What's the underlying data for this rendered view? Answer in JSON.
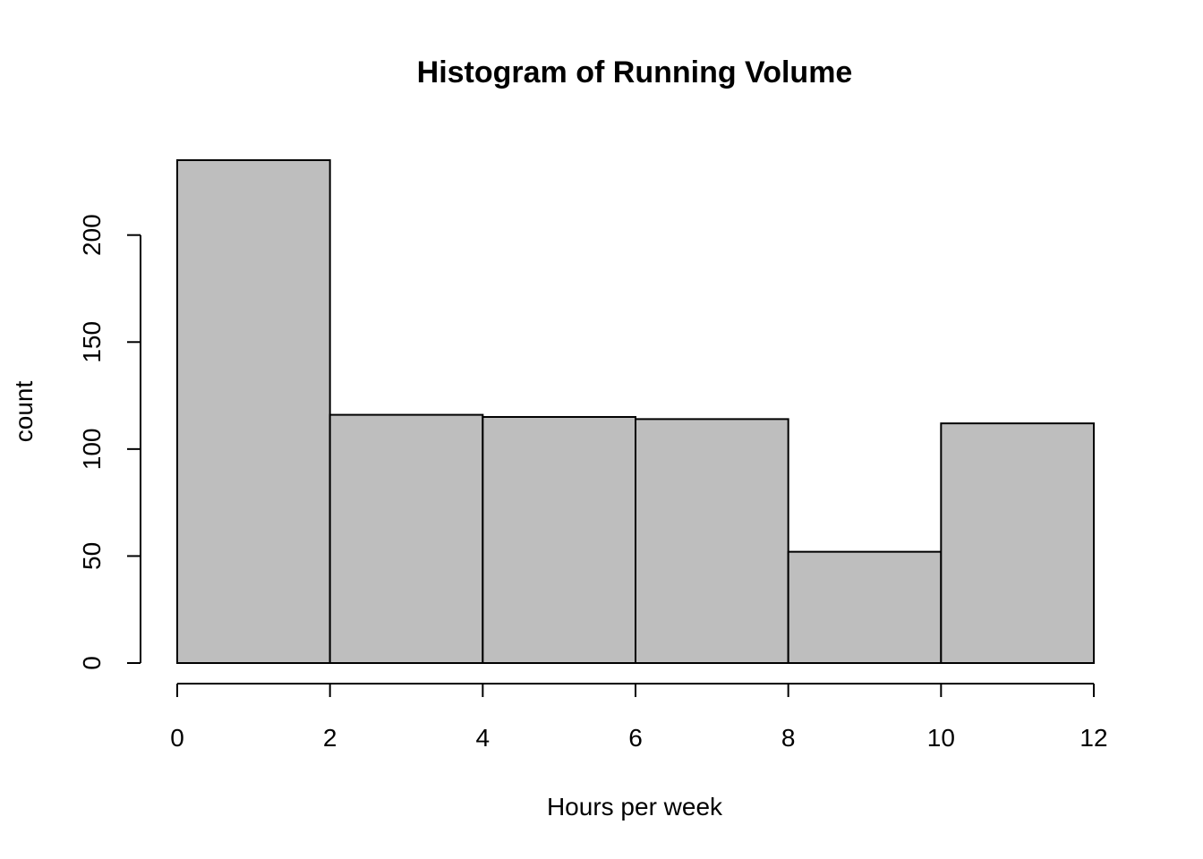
{
  "chart_data": {
    "type": "bar",
    "title": "Histogram of Running Volume",
    "xlabel": "Hours per week",
    "ylabel": "count",
    "bins": [
      {
        "start": 0,
        "end": 2,
        "count": 235
      },
      {
        "start": 2,
        "end": 4,
        "count": 116
      },
      {
        "start": 4,
        "end": 6,
        "count": 115
      },
      {
        "start": 6,
        "end": 8,
        "count": 114
      },
      {
        "start": 8,
        "end": 10,
        "count": 52
      },
      {
        "start": 10,
        "end": 12,
        "count": 112
      }
    ],
    "xlim": [
      0,
      12
    ],
    "ylim": [
      0,
      235
    ],
    "x_ticks": [
      0,
      2,
      4,
      6,
      8,
      10,
      12
    ],
    "y_ticks": [
      0,
      50,
      100,
      150,
      200
    ],
    "colors": {
      "bar_fill": "#bebebe",
      "bar_stroke": "#000000"
    },
    "grid": false,
    "legend": "none"
  }
}
